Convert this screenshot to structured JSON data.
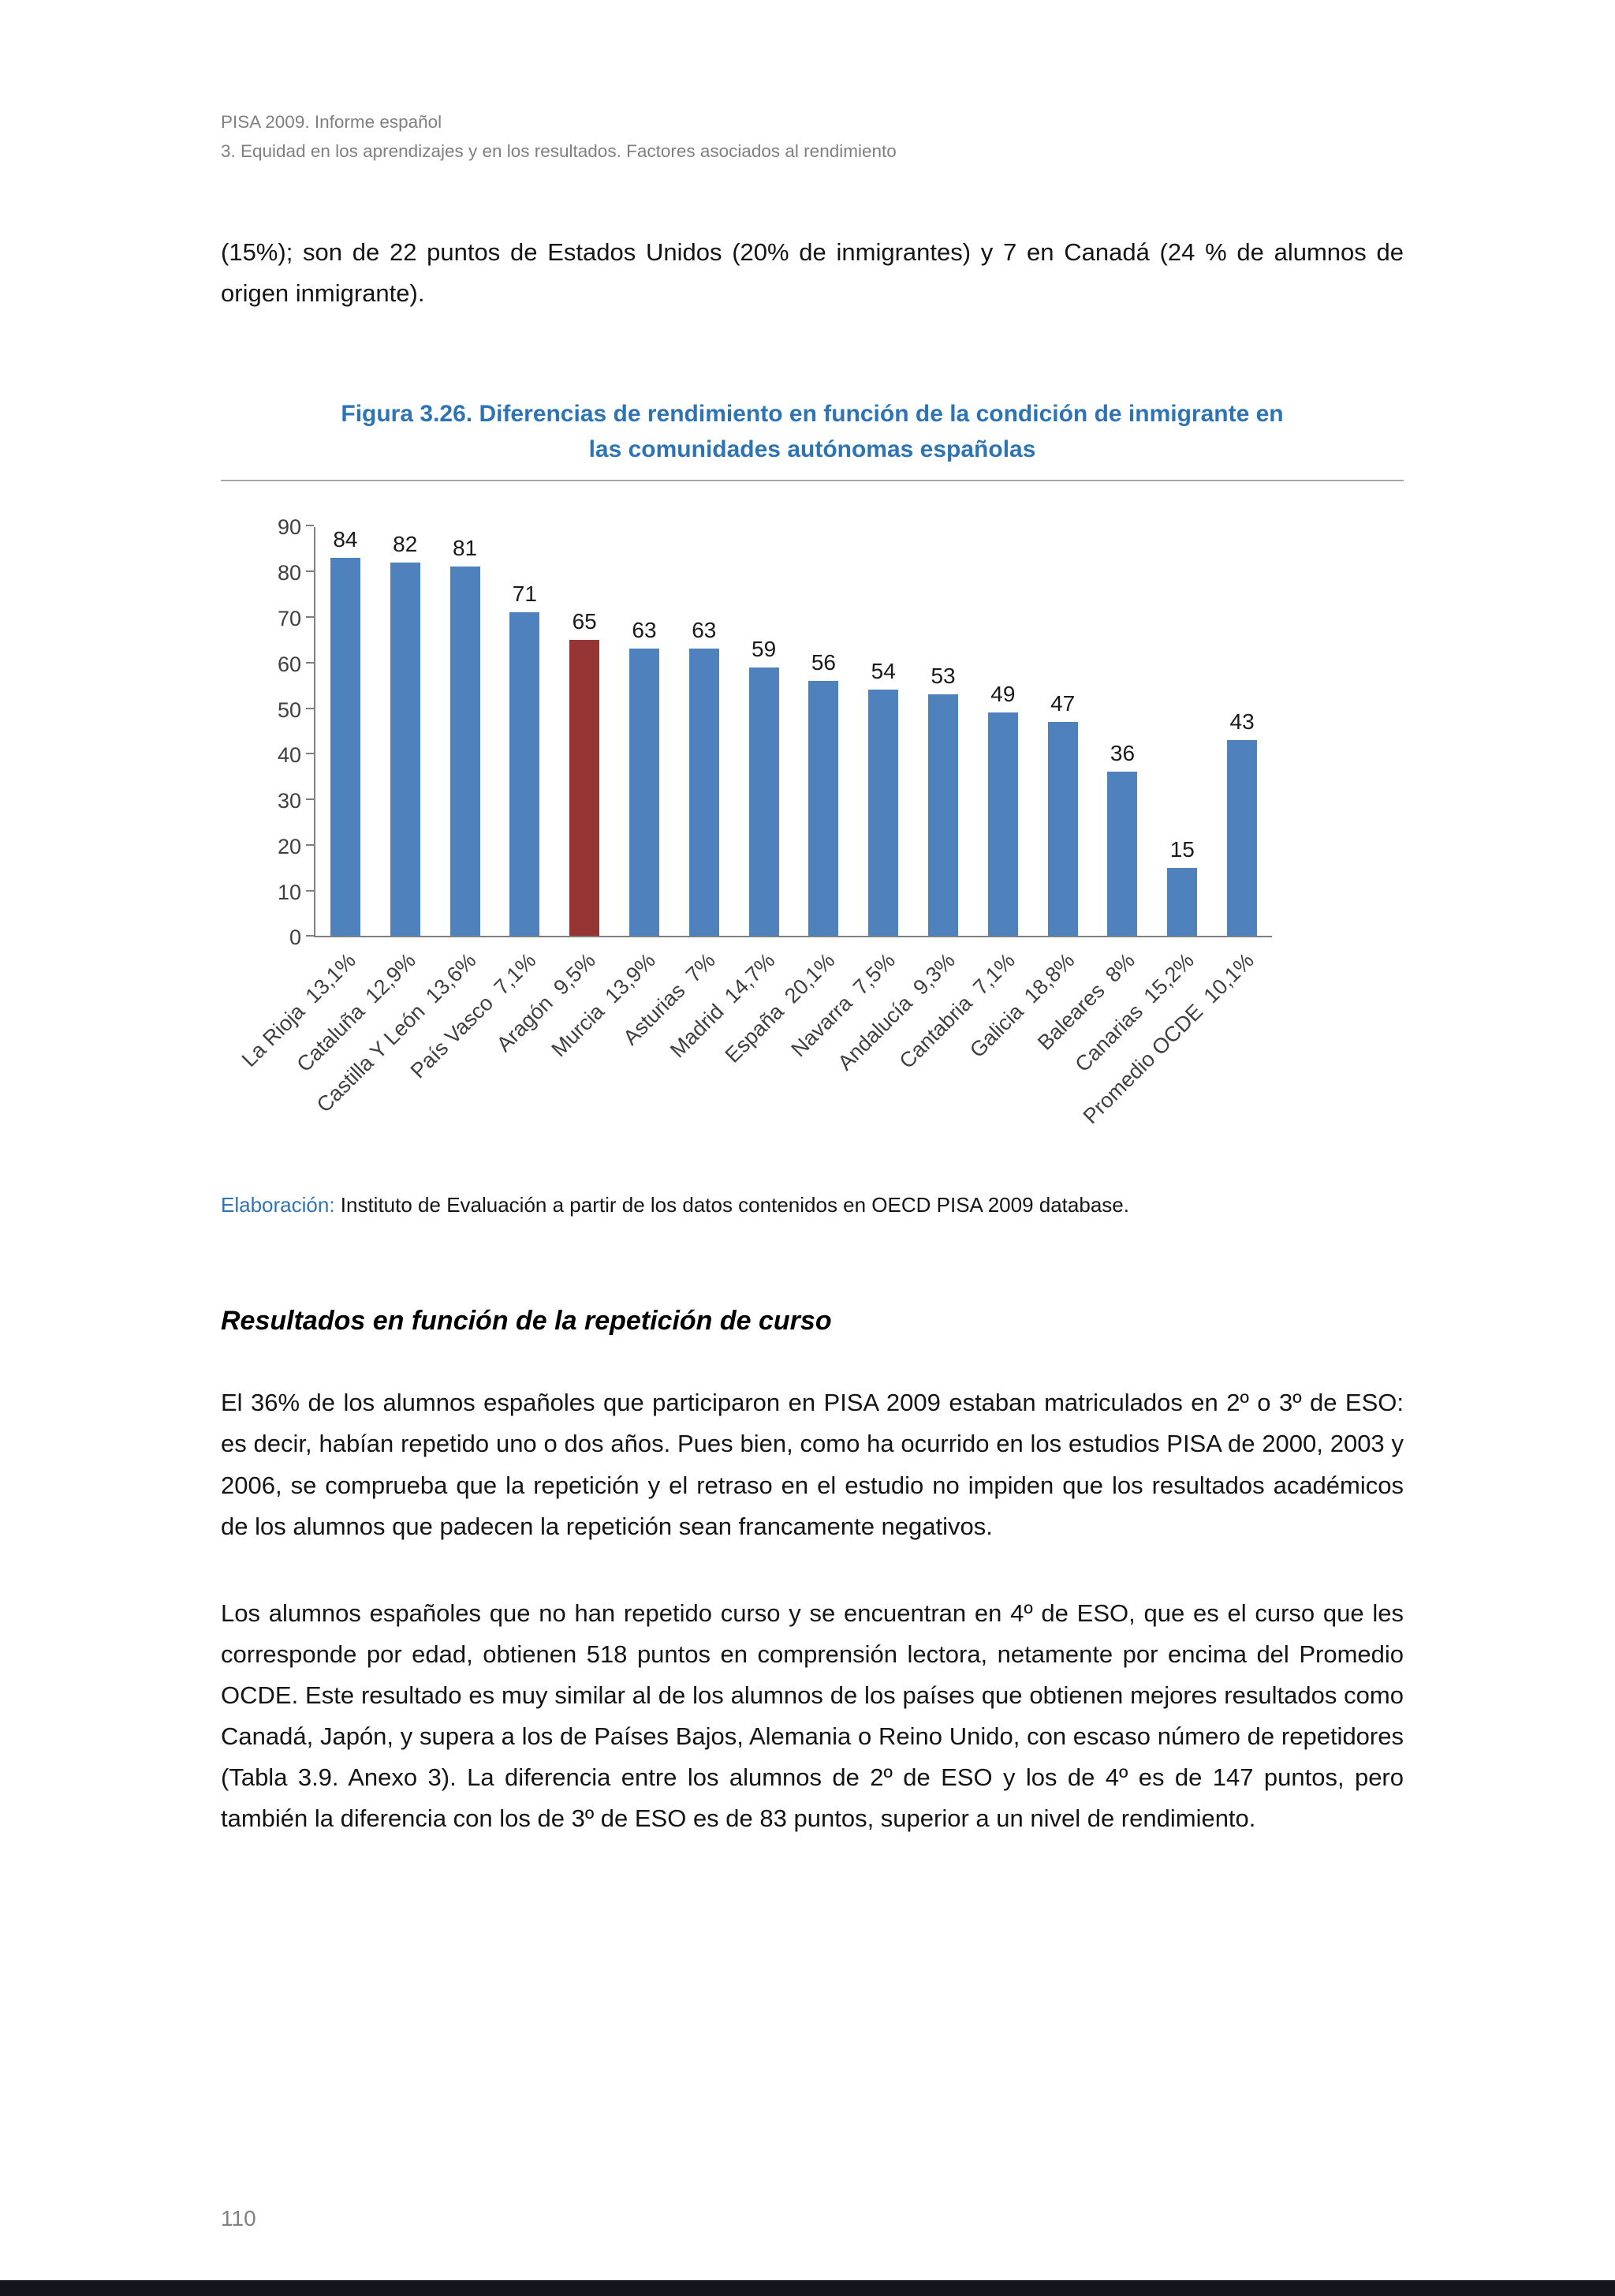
{
  "header": {
    "line1": "PISA 2009. Informe español",
    "line2": "3. Equidad en los aprendizajes y en los resultados. Factores asociados al rendimiento"
  },
  "intro_paragraph": "(15%); son de 22 puntos de Estados Unidos (20% de inmigrantes) y 7 en Canadá (24 % de alumnos de origen inmigrante).",
  "figure": {
    "title_line1": "Figura 3.26. Diferencias de rendimiento en función de la condición de inmigrante en",
    "title_line2": "las comunidades autónomas españolas",
    "source_label": "Elaboración:",
    "source_text": " Instituto de Evaluación a partir de los datos contenidos en OECD PISA 2009 database."
  },
  "chart_data": {
    "type": "bar",
    "title": "Diferencias de rendimiento en función de la condición de inmigrante en las comunidades autónomas españolas",
    "categories": [
      "La Rioja  13,1%",
      "Cataluña  12,9%",
      "Castilla Y León  13,6%",
      "País Vasco  7,1%",
      "Aragón  9,5%",
      "Murcia  13,9%",
      "Asturias  7%",
      "Madrid  14,7%",
      "España  20,1%",
      "Navarra  7,5%",
      "Andalucía  9,3%",
      "Cantabria  7,1%",
      "Galicia  18,8%",
      "Baleares  8%",
      "Canarias  15,2%",
      "Promedio OCDE  10,1%"
    ],
    "values": [
      84,
      82,
      81,
      71,
      65,
      63,
      63,
      59,
      56,
      54,
      53,
      49,
      47,
      36,
      15,
      43
    ],
    "highlight_index": 4,
    "bar_color": "#4F81BD",
    "highlight_color": "#963634",
    "xlabel": "",
    "ylabel": "",
    "ylim": [
      0,
      90
    ],
    "ytick_step": 10,
    "grid": false,
    "legend": "none"
  },
  "section": {
    "heading": "Resultados en función de la repetición de curso",
    "paragraph1": "El 36% de los alumnos españoles que participaron en PISA 2009 estaban matriculados en 2º o 3º de ESO: es decir, habían repetido uno o dos años. Pues bien, como ha ocurrido en los estudios PISA de 2000, 2003 y 2006, se comprueba que la repetición y el retraso en el estudio no impiden que los resultados académicos de los alumnos que padecen la repetición sean francamente negativos.",
    "paragraph2": "Los alumnos españoles que no han repetido curso y se encuentran en 4º de ESO, que es el curso que les corresponde por edad, obtienen 518 puntos en comprensión lectora, netamente por encima del Promedio OCDE. Este resultado es muy similar al de los alumnos de los países que obtienen mejores resultados como Canadá, Japón, y supera a los de Países Bajos, Alemania o Reino Unido, con escaso número de repetidores (Tabla 3.9. Anexo 3). La diferencia entre los alumnos de 2º de ESO y los de 4º es de 147 puntos, pero también la diferencia con los de 3º de ESO es de 83 puntos, superior a un nivel de rendimiento."
  },
  "footer": {
    "page_number": "110"
  }
}
